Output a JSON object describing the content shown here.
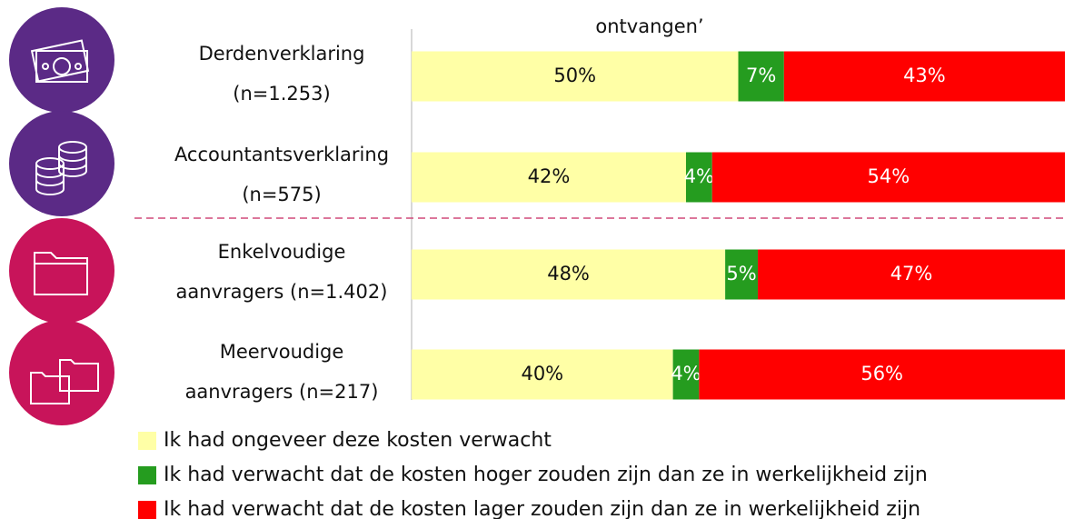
{
  "chart_data": {
    "type": "bar",
    "orientation": "horizontal",
    "stacked": true,
    "title": "ontvangen’",
    "categories": [
      [
        "Derdenverklaring",
        "(n=1.253)"
      ],
      [
        "Accountantsverklaring",
        "(n=575)"
      ],
      [
        "Enkelvoudige",
        "aanvragers (n=1.402)"
      ],
      [
        "Meervoudige",
        "aanvragers (n=217)"
      ]
    ],
    "xlim": [
      0,
      100
    ],
    "series": [
      {
        "name": "Ik had ongeveer deze kosten verwacht",
        "color": "#ffffa6",
        "values": [
          50,
          42,
          48,
          40
        ],
        "value_labels": [
          "50%",
          "42%",
          "48%",
          "40%"
        ]
      },
      {
        "name": "Ik had verwacht dat de kosten hoger zouden zijn dan ze in werkelijkheid zijn",
        "color": "#259c1f",
        "values": [
          7,
          4,
          5,
          4
        ],
        "value_labels": [
          "7%",
          "4%",
          "5%",
          "4%"
        ]
      },
      {
        "name": "Ik had verwacht dat de kosten lager zouden zijn dan ze in werkelijkheid zijn",
        "color": "#ff0000",
        "values": [
          43,
          54,
          47,
          56
        ],
        "value_labels": [
          "43%",
          "54%",
          "47%",
          "56%"
        ]
      }
    ]
  }
}
